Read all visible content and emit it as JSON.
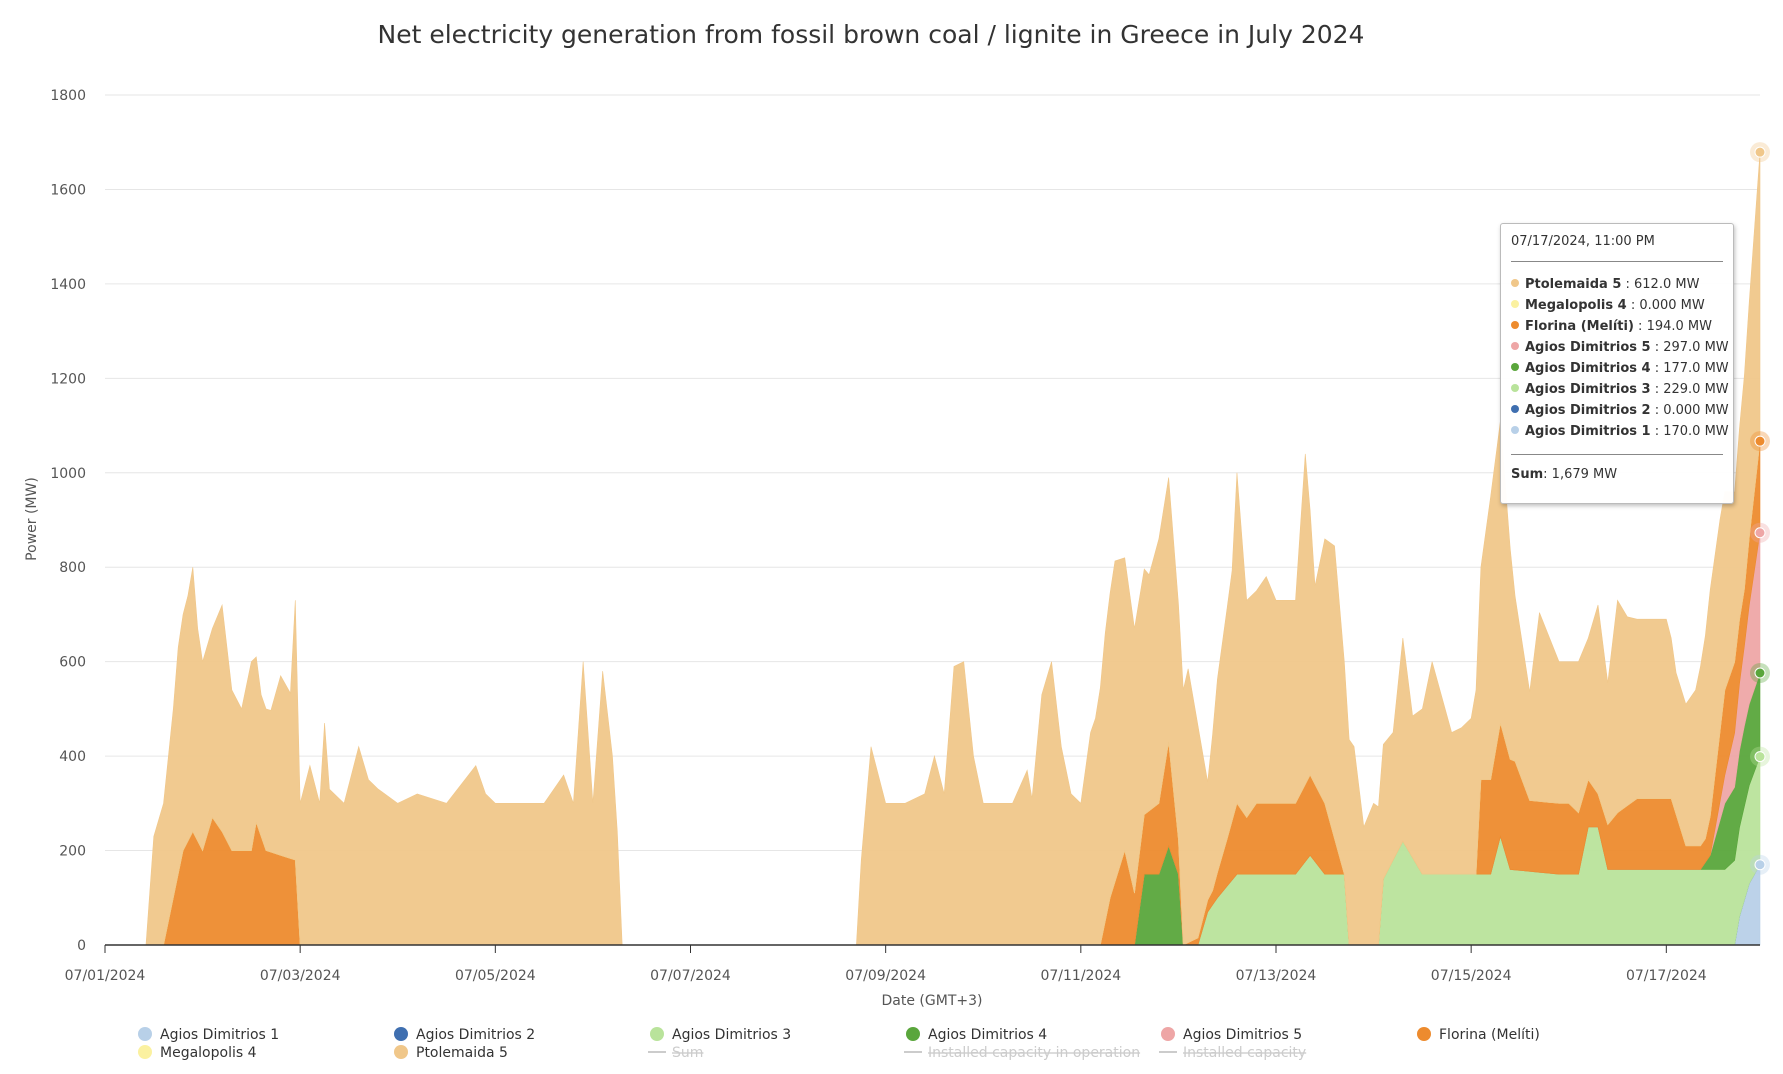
{
  "chart_data": {
    "type": "area",
    "stacked": true,
    "title": "Net electricity generation from fossil brown coal / lignite in Greece in July 2024",
    "xlabel": "Date (GMT+3)",
    "ylabel": "Power (MW)",
    "ylim": [
      0,
      1800
    ],
    "xlim": [
      0,
      16.96
    ],
    "yticks": [
      "0",
      "200",
      "400",
      "600",
      "800",
      "1000",
      "1200",
      "1400",
      "1600",
      "1800"
    ],
    "xticks": [
      {
        "day": 0,
        "label": "07/01/2024"
      },
      {
        "day": 2,
        "label": "07/03/2024"
      },
      {
        "day": 4,
        "label": "07/05/2024"
      },
      {
        "day": 6,
        "label": "07/07/2024"
      },
      {
        "day": 8,
        "label": "07/09/2024"
      },
      {
        "day": 10,
        "label": "07/11/2024"
      },
      {
        "day": 12,
        "label": "07/13/2024"
      },
      {
        "day": 14,
        "label": "07/15/2024"
      },
      {
        "day": 16,
        "label": "07/17/2024"
      }
    ],
    "legend_position": "bottom",
    "series": [
      {
        "name": "Agios Dimitrios 1",
        "color": "#b8d0e8",
        "points": [
          [
            0,
            0
          ],
          [
            16.7,
            0
          ],
          [
            16.75,
            60
          ],
          [
            16.85,
            130
          ],
          [
            16.96,
            170
          ]
        ]
      },
      {
        "name": "Agios Dimitrios 2",
        "color": "#3f6fb0",
        "points": [
          [
            0,
            0
          ],
          [
            16.96,
            0
          ]
        ]
      },
      {
        "name": "Agios Dimitrios 3",
        "color": "#b9e39b",
        "points": [
          [
            0,
            0
          ],
          [
            11.2,
            0
          ],
          [
            11.3,
            70
          ],
          [
            11.4,
            100
          ],
          [
            11.6,
            150
          ],
          [
            12.2,
            150
          ],
          [
            12.35,
            190
          ],
          [
            12.5,
            150
          ],
          [
            12.7,
            150
          ],
          [
            12.75,
            0
          ],
          [
            13.05,
            0
          ],
          [
            13.1,
            140
          ],
          [
            13.3,
            220
          ],
          [
            13.5,
            150
          ],
          [
            14.2,
            150
          ],
          [
            14.3,
            230
          ],
          [
            14.4,
            160
          ],
          [
            14.9,
            150
          ],
          [
            15.1,
            150
          ],
          [
            15.2,
            250
          ],
          [
            15.3,
            250
          ],
          [
            15.4,
            160
          ],
          [
            15.6,
            160
          ],
          [
            16.3,
            160
          ],
          [
            16.6,
            160
          ],
          [
            16.96,
            229
          ]
        ]
      },
      {
        "name": "Agios Dimitrios 4",
        "color": "#5aa63c",
        "points": [
          [
            0,
            0
          ],
          [
            10.55,
            0
          ],
          [
            10.65,
            150
          ],
          [
            10.8,
            150
          ],
          [
            10.9,
            210
          ],
          [
            11.0,
            150
          ],
          [
            11.05,
            0
          ],
          [
            16.35,
            0
          ],
          [
            16.45,
            30
          ],
          [
            16.6,
            140
          ],
          [
            16.8,
            170
          ],
          [
            16.96,
            177
          ]
        ]
      },
      {
        "name": "Agios Dimitrios 5",
        "color": "#eea6a6",
        "points": [
          [
            0,
            0
          ],
          [
            16.45,
            0
          ],
          [
            16.6,
            60
          ],
          [
            16.8,
            170
          ],
          [
            16.96,
            297
          ]
        ]
      },
      {
        "name": "Florina (Melíti)",
        "color": "#ed8b2e",
        "points": [
          [
            0,
            0
          ],
          [
            0.6,
            0
          ],
          [
            0.7,
            100
          ],
          [
            0.8,
            200
          ],
          [
            0.9,
            240
          ],
          [
            1.0,
            200
          ],
          [
            1.1,
            270
          ],
          [
            1.2,
            240
          ],
          [
            1.3,
            200
          ],
          [
            1.5,
            200
          ],
          [
            1.55,
            260
          ],
          [
            1.65,
            200
          ],
          [
            1.95,
            180
          ],
          [
            2.0,
            0
          ],
          [
            10.2,
            0
          ],
          [
            10.3,
            100
          ],
          [
            10.45,
            200
          ],
          [
            10.55,
            110
          ],
          [
            10.8,
            150
          ],
          [
            10.9,
            220
          ],
          [
            11.05,
            0
          ],
          [
            11.35,
            30
          ],
          [
            11.5,
            100
          ],
          [
            11.6,
            150
          ],
          [
            11.7,
            120
          ],
          [
            11.8,
            150
          ],
          [
            12.2,
            150
          ],
          [
            12.35,
            170
          ],
          [
            12.5,
            150
          ],
          [
            12.7,
            0
          ],
          [
            14.05,
            0
          ],
          [
            14.1,
            200
          ],
          [
            14.2,
            200
          ],
          [
            14.3,
            240
          ],
          [
            14.45,
            230
          ],
          [
            14.6,
            150
          ],
          [
            14.85,
            150
          ],
          [
            15.0,
            150
          ],
          [
            15.1,
            130
          ],
          [
            15.3,
            70
          ],
          [
            15.5,
            120
          ],
          [
            15.7,
            150
          ],
          [
            16.05,
            150
          ],
          [
            16.2,
            50
          ],
          [
            16.4,
            50
          ],
          [
            16.6,
            180
          ],
          [
            16.8,
            120
          ],
          [
            16.96,
            194
          ]
        ]
      },
      {
        "name": "Megalopolis 4",
        "color": "#fbf1a0",
        "points": [
          [
            0,
            0
          ],
          [
            16.96,
            0
          ]
        ]
      },
      {
        "name": "Ptolemaida 5",
        "color": "#f0c78a",
        "points": [
          [
            0,
            0
          ],
          [
            0.42,
            0
          ],
          [
            0.5,
            230
          ],
          [
            0.6,
            300
          ],
          [
            0.7,
            400
          ],
          [
            0.75,
            480
          ],
          [
            0.8,
            500
          ],
          [
            0.85,
            520
          ],
          [
            0.9,
            560
          ],
          [
            0.95,
            450
          ],
          [
            1.0,
            400
          ],
          [
            1.1,
            400
          ],
          [
            1.2,
            480
          ],
          [
            1.3,
            340
          ],
          [
            1.4,
            300
          ],
          [
            1.5,
            400
          ],
          [
            1.6,
            300
          ],
          [
            1.7,
            300
          ],
          [
            1.8,
            380
          ],
          [
            1.9,
            350
          ],
          [
            1.95,
            550
          ],
          [
            2.0,
            300
          ],
          [
            2.1,
            380
          ],
          [
            2.2,
            300
          ],
          [
            2.25,
            470
          ],
          [
            2.3,
            330
          ],
          [
            2.45,
            300
          ],
          [
            2.6,
            420
          ],
          [
            2.7,
            350
          ],
          [
            2.8,
            330
          ],
          [
            3.0,
            300
          ],
          [
            3.2,
            320
          ],
          [
            3.5,
            300
          ],
          [
            3.8,
            380
          ],
          [
            3.9,
            320
          ],
          [
            4.0,
            300
          ],
          [
            4.3,
            300
          ],
          [
            4.5,
            300
          ],
          [
            4.7,
            360
          ],
          [
            4.8,
            300
          ],
          [
            4.9,
            600
          ],
          [
            5.0,
            300
          ],
          [
            5.1,
            580
          ],
          [
            5.2,
            400
          ],
          [
            5.25,
            240
          ],
          [
            5.3,
            0
          ],
          [
            7.7,
            0
          ],
          [
            7.75,
            180
          ],
          [
            7.85,
            420
          ],
          [
            8.0,
            300
          ],
          [
            8.2,
            300
          ],
          [
            8.4,
            320
          ],
          [
            8.5,
            400
          ],
          [
            8.6,
            320
          ],
          [
            8.7,
            590
          ],
          [
            8.8,
            600
          ],
          [
            8.9,
            400
          ],
          [
            9.0,
            300
          ],
          [
            9.3,
            300
          ],
          [
            9.45,
            370
          ],
          [
            9.5,
            310
          ],
          [
            9.6,
            530
          ],
          [
            9.7,
            600
          ],
          [
            9.8,
            420
          ],
          [
            9.9,
            320
          ],
          [
            10.0,
            300
          ],
          [
            10.1,
            450
          ],
          [
            10.15,
            480
          ],
          [
            10.25,
            610
          ],
          [
            10.35,
            680
          ],
          [
            10.45,
            620
          ],
          [
            10.55,
            560
          ],
          [
            10.7,
            500
          ],
          [
            10.8,
            560
          ],
          [
            10.9,
            560
          ],
          [
            11.0,
            500
          ],
          [
            11.1,
            580
          ],
          [
            11.2,
            450
          ],
          [
            11.3,
            250
          ],
          [
            11.4,
            410
          ],
          [
            11.55,
            530
          ],
          [
            11.6,
            700
          ],
          [
            11.7,
            460
          ],
          [
            11.8,
            450
          ],
          [
            11.9,
            480
          ],
          [
            12.0,
            430
          ],
          [
            12.2,
            430
          ],
          [
            12.3,
            700
          ],
          [
            12.4,
            420
          ],
          [
            12.5,
            560
          ],
          [
            12.6,
            620
          ],
          [
            12.7,
            450
          ],
          [
            12.8,
            420
          ],
          [
            12.9,
            250
          ],
          [
            13.0,
            300
          ],
          [
            13.2,
            270
          ],
          [
            13.3,
            430
          ],
          [
            13.4,
            300
          ],
          [
            13.5,
            350
          ],
          [
            13.6,
            450
          ],
          [
            13.8,
            300
          ],
          [
            13.9,
            310
          ],
          [
            14.0,
            330
          ],
          [
            14.1,
            450
          ],
          [
            14.2,
            600
          ],
          [
            14.3,
            640
          ],
          [
            14.45,
            350
          ],
          [
            14.6,
            230
          ],
          [
            14.7,
            400
          ],
          [
            14.8,
            350
          ],
          [
            14.9,
            300
          ],
          [
            15.0,
            300
          ],
          [
            15.1,
            320
          ],
          [
            15.2,
            300
          ],
          [
            15.3,
            400
          ],
          [
            15.4,
            300
          ],
          [
            15.5,
            450
          ],
          [
            15.6,
            400
          ],
          [
            15.7,
            380
          ],
          [
            16.0,
            380
          ],
          [
            16.1,
            300
          ],
          [
            16.2,
            300
          ],
          [
            16.3,
            330
          ],
          [
            16.45,
            480
          ],
          [
            16.55,
            450
          ],
          [
            16.7,
            360
          ],
          [
            16.85,
            500
          ],
          [
            16.96,
            612
          ]
        ]
      }
    ],
    "hidden_legend": [
      "Sum",
      "Installed capacity in operation",
      "Installed capacity"
    ],
    "tooltip": {
      "date": "07/17/2024, 11:00 PM",
      "rows": [
        {
          "name": "Ptolemaida 5",
          "value": ": 612.0 MW",
          "color": "#f0c78a"
        },
        {
          "name": "Megalopolis 4",
          "value": ": 0.000 MW",
          "color": "#fbf1a0"
        },
        {
          "name": "Florina (Melíti)",
          "value": ": 194.0 MW",
          "color": "#ed8b2e"
        },
        {
          "name": "Agios Dimitrios 5",
          "value": ": 297.0 MW",
          "color": "#eea6a6"
        },
        {
          "name": "Agios Dimitrios 4",
          "value": ": 177.0 MW",
          "color": "#5aa63c"
        },
        {
          "name": "Agios Dimitrios 3",
          "value": ": 229.0 MW",
          "color": "#b9e39b"
        },
        {
          "name": "Agios Dimitrios 2",
          "value": ": 0.000 MW",
          "color": "#3f6fb0"
        },
        {
          "name": "Agios Dimitrios 1",
          "value": ": 170.0 MW",
          "color": "#b8d0e8"
        }
      ],
      "sum_label": "Sum",
      "sum_value": ": 1,679 MW"
    }
  }
}
